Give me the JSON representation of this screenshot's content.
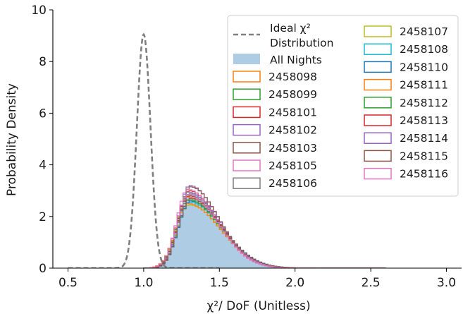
{
  "chart_data": {
    "type": "histogram",
    "xlabel": "χ²/ DoF (Unitless)",
    "ylabel": "Probability Density",
    "xlim": [
      0.4,
      3.1
    ],
    "ylim": [
      0,
      10
    ],
    "xticks": [
      "0.5",
      "1.0",
      "1.5",
      "2.0",
      "2.5",
      "3.0"
    ],
    "yticks": [
      "0",
      "2",
      "4",
      "6",
      "8",
      "10"
    ],
    "legend_placement": "top-right",
    "ideal": {
      "name_line1": "Ideal χ²",
      "name_line2": "Distribution",
      "color": "#808080",
      "style": "dashed",
      "peak_x": 1.0,
      "peak_y": 9.05,
      "sigma": 0.045,
      "x_start": 0.5,
      "x_end": 1.5
    },
    "all_nights": {
      "name": "All Nights",
      "color": "#aecde4",
      "peak_x": 1.3,
      "peak_y": 2.9,
      "sigma_left": 0.075,
      "sigma_right": 0.2
    },
    "bin_width": 0.02,
    "series": [
      {
        "name": "2458098",
        "color": "#ff7f0e",
        "peak": 2.75
      },
      {
        "name": "2458099",
        "color": "#2ca02c",
        "peak": 2.85
      },
      {
        "name": "2458101",
        "color": "#d62728",
        "peak": 3.0
      },
      {
        "name": "2458102",
        "color": "#9467bd",
        "peak": 3.2
      },
      {
        "name": "2458103",
        "color": "#8c564b",
        "peak": 3.15
      },
      {
        "name": "2458105",
        "color": "#e377c2",
        "peak": 3.05
      },
      {
        "name": "2458106",
        "color": "#7f7f7f",
        "peak": 2.95
      },
      {
        "name": "2458107",
        "color": "#bcbd22",
        "peak": 2.45
      },
      {
        "name": "2458108",
        "color": "#17becf",
        "peak": 2.55
      },
      {
        "name": "2458110",
        "color": "#1f77b4",
        "peak": 2.6
      },
      {
        "name": "2458111",
        "color": "#ff7f0e",
        "peak": 2.5
      },
      {
        "name": "2458112",
        "color": "#2ca02c",
        "peak": 2.65
      },
      {
        "name": "2458113",
        "color": "#d62728",
        "peak": 2.8
      },
      {
        "name": "2458114",
        "color": "#9467bd",
        "peak": 2.9
      },
      {
        "name": "2458115",
        "color": "#8c564b",
        "peak": 2.7
      },
      {
        "name": "2458116",
        "color": "#e377c2",
        "peak": 2.85
      }
    ]
  }
}
